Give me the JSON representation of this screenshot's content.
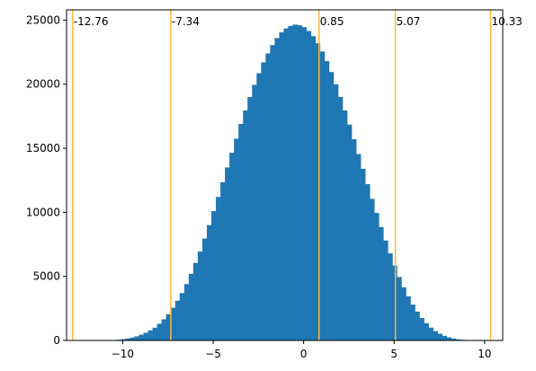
{
  "colors": {
    "bar": "#1f77b4",
    "reference_line": "#ffb734",
    "axis": "#000000",
    "background": "#ffffff"
  },
  "chart_data": {
    "type": "bar",
    "title": "",
    "xlabel": "",
    "ylabel": "",
    "xlim": [
      -13.1,
      11.0
    ],
    "ylim": [
      0,
      25800
    ],
    "grid": false,
    "legend": "none",
    "bin_width": 0.25,
    "bin_start": -12.35,
    "x_ticks": [
      -10,
      -5,
      0,
      5,
      10
    ],
    "x_tick_labels": [
      "−10",
      "−5",
      "0",
      "5",
      "10"
    ],
    "y_ticks": [
      0,
      5000,
      10000,
      15000,
      20000,
      25000
    ],
    "y_tick_labels": [
      "0",
      "5000",
      "10000",
      "15000",
      "20000",
      "25000"
    ],
    "values": [
      0,
      0,
      0,
      0,
      0,
      10,
      20,
      40,
      60,
      100,
      150,
      220,
      320,
      450,
      600,
      780,
      1000,
      1300,
      1650,
      2050,
      2550,
      3100,
      3700,
      4400,
      5200,
      6050,
      6950,
      7950,
      9000,
      10100,
      11200,
      12350,
      13500,
      14650,
      15750,
      16900,
      17950,
      19000,
      19950,
      20850,
      21700,
      22400,
      23050,
      23600,
      24050,
      24350,
      24550,
      24650,
      24600,
      24450,
      24150,
      23750,
      23200,
      22550,
      21800,
      20950,
      20000,
      19000,
      17950,
      16850,
      15700,
      14550,
      13400,
      12200,
      11050,
      9950,
      8850,
      7800,
      6800,
      5850,
      4950,
      4150,
      3450,
      2800,
      2250,
      1750,
      1350,
      1000,
      730,
      520,
      360,
      240,
      150,
      90,
      50,
      25,
      10,
      5
    ],
    "reference_lines": [
      {
        "x": -12.76,
        "label": "-12.76"
      },
      {
        "x": -7.34,
        "label": "-7.34"
      },
      {
        "x": 0.85,
        "label": "0.85"
      },
      {
        "x": 5.07,
        "label": "5.07"
      },
      {
        "x": 10.33,
        "label": "10.33"
      }
    ]
  }
}
